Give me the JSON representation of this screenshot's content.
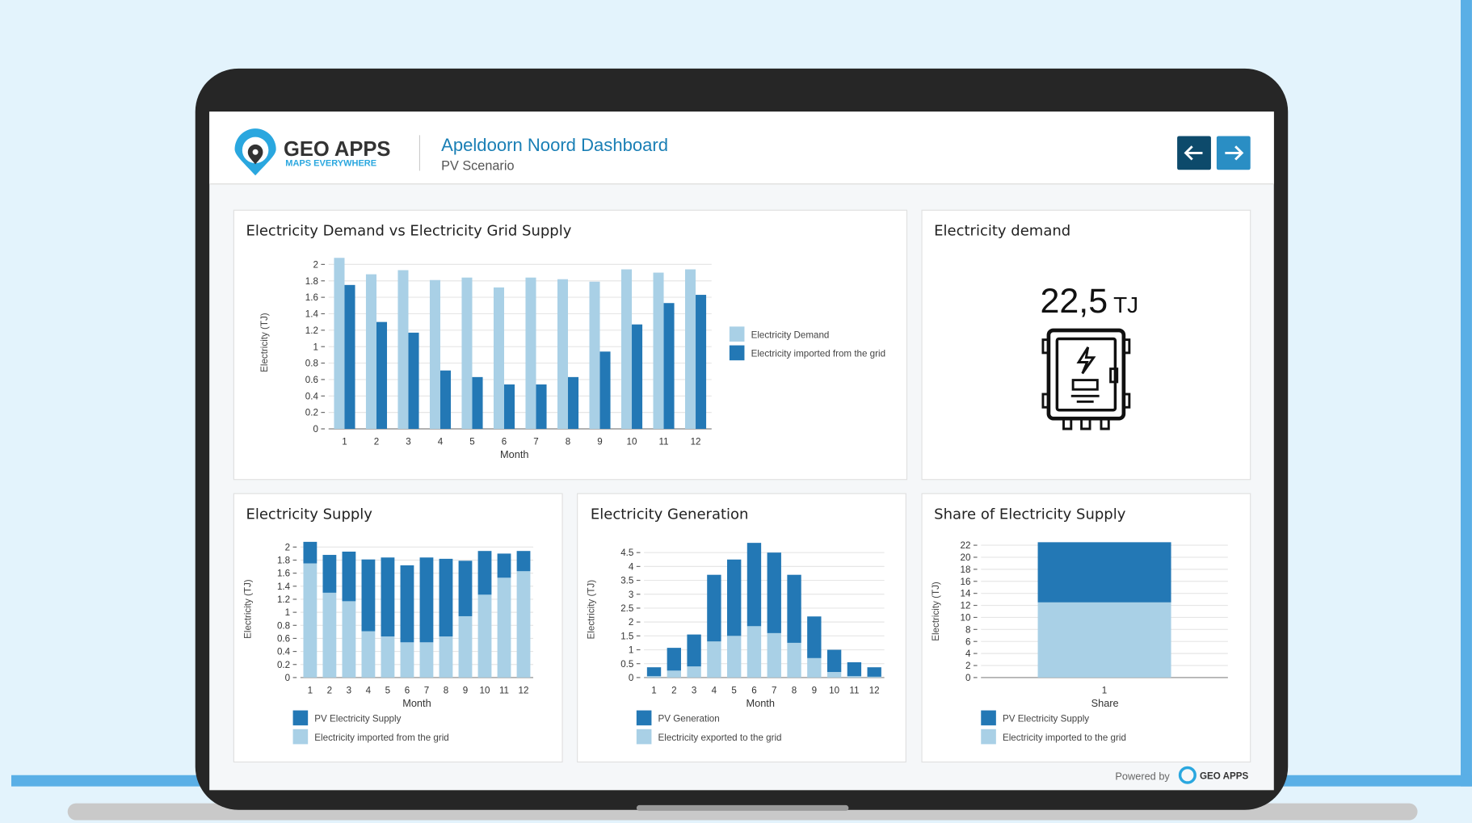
{
  "header": {
    "logo": "GEO APPS",
    "logo_tagline": "MAPS EVERYWHERE",
    "title": "Apeldoorn Noord Dashboard",
    "subtitle": "PV Scenario"
  },
  "kpi": {
    "title": "Electricity demand",
    "value": "22,5",
    "unit": "TJ"
  },
  "footer": {
    "powered_by": "Powered by",
    "logo": "GEO APPS"
  },
  "chart_data": [
    {
      "type": "bar",
      "title": "Electricity Demand vs Electricity Grid Supply",
      "xlabel": "Month",
      "ylabel": "Electricity (TJ)",
      "categories": [
        "1",
        "2",
        "3",
        "4",
        "5",
        "6",
        "7",
        "8",
        "9",
        "10",
        "11",
        "12"
      ],
      "series": [
        {
          "name": "Electricity Demand",
          "color": "#a9d0e6",
          "values": [
            2.08,
            1.88,
            1.93,
            1.81,
            1.84,
            1.72,
            1.84,
            1.82,
            1.79,
            1.94,
            1.9,
            1.94
          ]
        },
        {
          "name": "Electricity imported from the grid",
          "color": "#2378b5",
          "values": [
            1.75,
            1.3,
            1.17,
            0.71,
            0.63,
            0.54,
            0.54,
            0.63,
            0.94,
            1.27,
            1.53,
            1.63
          ]
        }
      ],
      "stacked": false,
      "legend": "right",
      "grid": true,
      "ylim": [
        0,
        2.1
      ],
      "yticks": [
        0,
        0.2,
        0.4,
        0.6,
        0.8,
        1,
        1.2,
        1.4,
        1.6,
        1.8,
        2
      ]
    },
    {
      "type": "bar",
      "title": "Electricity Supply",
      "xlabel": "Month",
      "ylabel": "Electricity (TJ)",
      "categories": [
        "1",
        "2",
        "3",
        "4",
        "5",
        "6",
        "7",
        "8",
        "9",
        "10",
        "11",
        "12"
      ],
      "series": [
        {
          "name": "PV Electricity Supply",
          "color": "#2378b5",
          "values": [
            0.33,
            0.58,
            0.76,
            1.1,
            1.21,
            1.18,
            1.3,
            1.19,
            0.85,
            0.67,
            0.37,
            0.31
          ]
        },
        {
          "name": "Electricity imported from the grid",
          "color": "#a9d0e6",
          "values": [
            1.75,
            1.3,
            1.17,
            0.71,
            0.63,
            0.54,
            0.54,
            0.63,
            0.94,
            1.27,
            1.53,
            1.63
          ]
        }
      ],
      "stacked": true,
      "legend": "bottom",
      "grid": true,
      "ylim": [
        0,
        2.1
      ],
      "yticks": [
        0,
        0.2,
        0.4,
        0.6,
        0.8,
        1,
        1.2,
        1.4,
        1.6,
        1.8,
        2
      ]
    },
    {
      "type": "bar",
      "title": "Electricity Generation",
      "xlabel": "Month",
      "ylabel": "Electricity (TJ)",
      "categories": [
        "1",
        "2",
        "3",
        "4",
        "5",
        "6",
        "7",
        "8",
        "9",
        "10",
        "11",
        "12"
      ],
      "series": [
        {
          "name": "PV Generation",
          "color": "#2378b5",
          "values": [
            0.32,
            0.82,
            1.15,
            2.4,
            2.75,
            3.0,
            2.9,
            2.45,
            1.5,
            0.8,
            0.5,
            0.34
          ]
        },
        {
          "name": "Electricity exported to the grid",
          "color": "#a9d0e6",
          "values": [
            0.05,
            0.25,
            0.4,
            1.3,
            1.5,
            1.85,
            1.6,
            1.25,
            0.7,
            0.2,
            0.05,
            0.03
          ]
        }
      ],
      "stacked": true,
      "legend": "bottom",
      "grid": true,
      "ylim": [
        0,
        4.9
      ],
      "yticks": [
        0,
        0.5,
        1,
        1.5,
        2,
        2.5,
        3,
        3.5,
        4,
        4.5
      ]
    },
    {
      "type": "bar",
      "title": "Share of Electricity Supply",
      "xlabel": "Share",
      "ylabel": "Electricity (TJ)",
      "categories": [
        "1"
      ],
      "series": [
        {
          "name": "PV Electricity Supply",
          "color": "#2378b5",
          "values": [
            10
          ]
        },
        {
          "name": "Electricity imported to the grid",
          "color": "#a9d0e6",
          "values": [
            12.5
          ]
        }
      ],
      "stacked": true,
      "legend": "bottom",
      "grid": true,
      "ylim": [
        0,
        22
      ],
      "yticks": [
        0,
        2,
        4,
        6,
        8,
        10,
        12,
        14,
        16,
        18,
        20,
        22
      ]
    }
  ]
}
